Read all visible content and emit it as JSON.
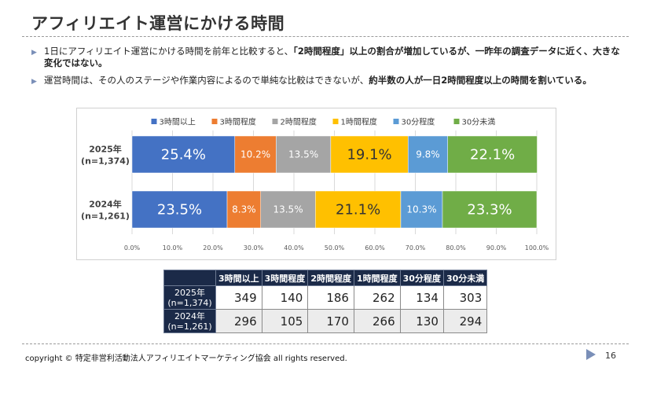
{
  "slide": {
    "title": "アフィリエイト運営にかける時間",
    "bullets": [
      {
        "marker": "▶",
        "pre": "1日にアフィリエイト運営にかける時間を前年と比較すると、",
        "strong": "「2時間程度」以上の割合が増加しているが、一昨年の調査データに近く、大きな変化ではない。",
        "post": ""
      },
      {
        "marker": "▶",
        "pre": "運営時間は、その人のステージや作業内容によるので単純な比較はできないが、",
        "strong": "約半数の人が一日2時間程度以上の時間を割いている。",
        "post": ""
      }
    ],
    "copyright": "copyright © 特定非営利活動法人アフィリエイトマーケティング協会 all rights reserved.",
    "page_number": "16",
    "colors": {
      "nav_arrow": "#7a8fb8",
      "table_header_bg": "#1b2a48"
    }
  },
  "chart_data": {
    "type": "bar",
    "orientation": "horizontal",
    "stacked": "percent",
    "categories": [
      [
        "2025年",
        "(n=1,374)"
      ],
      [
        "2024年",
        "(n=1,261)"
      ]
    ],
    "series": [
      {
        "name": "3時間以上",
        "color": "#4472c4",
        "values": [
          25.4,
          23.5
        ],
        "labels": [
          "25.4%",
          "23.5%"
        ],
        "label_color": "#ffffff"
      },
      {
        "name": "3時間程度",
        "color": "#ed7d31",
        "values": [
          10.2,
          8.3
        ],
        "labels": [
          "10.2%",
          "8.3%"
        ],
        "label_color": "#ffffff"
      },
      {
        "name": "2時間程度",
        "color": "#a5a5a5",
        "values": [
          13.5,
          13.5
        ],
        "labels": [
          "13.5%",
          "13.5%"
        ],
        "label_color": "#ffffff"
      },
      {
        "name": "1時間程度",
        "color": "#ffc000",
        "values": [
          19.1,
          21.1
        ],
        "labels": [
          "19.1%",
          "21.1%"
        ],
        "label_color": "#333333"
      },
      {
        "name": "30分程度",
        "color": "#5b9bd5",
        "values": [
          9.8,
          10.3
        ],
        "labels": [
          "9.8%",
          "10.3%"
        ],
        "label_color": "#ffffff"
      },
      {
        "name": "30分未満",
        "color": "#70ad47",
        "values": [
          22.1,
          23.3
        ],
        "labels": [
          "22.1%",
          "23.3%"
        ],
        "label_color": "#ffffff"
      }
    ],
    "xlim": [
      0,
      100
    ],
    "x_ticks": [
      "0.0%",
      "10.0%",
      "20.0%",
      "30.0%",
      "40.0%",
      "50.0%",
      "60.0%",
      "70.0%",
      "80.0%",
      "90.0%",
      "100.0%"
    ],
    "legend": "top",
    "grid": true
  },
  "table": {
    "headers": [
      "3時間以上",
      "3時間程度",
      "2時間程度",
      "1時間程度",
      "30分程度",
      "30分未満"
    ],
    "rows": [
      {
        "label": [
          "2025年",
          "(n=1,374)"
        ],
        "values": [
          "349",
          "140",
          "186",
          "262",
          "134",
          "303"
        ]
      },
      {
        "label": [
          "2024年",
          "(n=1,261)"
        ],
        "values": [
          "296",
          "105",
          "170",
          "266",
          "130",
          "294"
        ]
      }
    ]
  }
}
